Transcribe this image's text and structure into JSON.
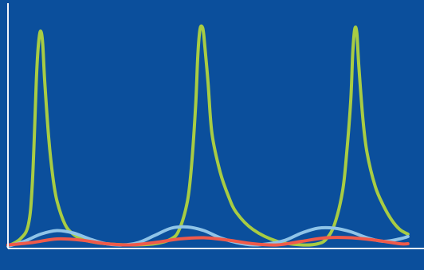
{
  "chart_data": {
    "type": "line",
    "title": "",
    "xlabel": "",
    "ylabel": "",
    "xlim": [
      0,
      100
    ],
    "ylim": [
      0,
      100
    ],
    "grid": false,
    "legend": "none",
    "background_color": "#0b4f9c",
    "axis_color": "#f2f6fb",
    "series": [
      {
        "color": "#a8cc43",
        "x": [
          0,
          3,
          5,
          6,
          7,
          7.5,
          8,
          8.5,
          9,
          10,
          11,
          12,
          14,
          16,
          18,
          20,
          24,
          30,
          36,
          40,
          42,
          44,
          45,
          46,
          46.5,
          47,
          47.5,
          48,
          49,
          50,
          52,
          54,
          56,
          60,
          66,
          72,
          76,
          78,
          80,
          82,
          83,
          84,
          84.5,
          85,
          85.5,
          86,
          87,
          88,
          90,
          92,
          94,
          96,
          98
        ],
        "y": [
          1,
          4,
          10,
          28,
          72,
          86,
          91,
          86,
          70,
          46,
          30,
          20,
          10,
          6,
          4,
          3,
          2,
          1.5,
          2,
          4,
          8,
          20,
          35,
          60,
          80,
          91,
          93,
          89,
          70,
          48,
          32,
          22,
          15,
          8,
          3,
          1.5,
          2,
          4,
          10,
          24,
          40,
          62,
          82,
          92,
          90,
          76,
          54,
          40,
          26,
          18,
          12,
          8,
          6
        ]
      },
      {
        "color": "#8fc4e8",
        "x": [
          0,
          4,
          8,
          12,
          16,
          20,
          24,
          28,
          32,
          36,
          40,
          44,
          48,
          52,
          56,
          60,
          64,
          68,
          72,
          76,
          80,
          84,
          88,
          92,
          96,
          98
        ],
        "y": [
          1,
          3,
          6,
          7.5,
          6.5,
          4,
          2,
          1.5,
          2.5,
          5.5,
          8.5,
          9,
          7.5,
          4.5,
          2.5,
          1.5,
          2,
          3.5,
          6.5,
          8.5,
          8.5,
          7,
          4.5,
          3,
          4,
          5
        ]
      },
      {
        "color": "#f05a4a",
        "x": [
          0,
          6,
          12,
          18,
          24,
          30,
          36,
          42,
          48,
          54,
          60,
          66,
          72,
          78,
          84,
          90,
          96,
          98
        ],
        "y": [
          1.5,
          2.5,
          4,
          3.5,
          2,
          1.5,
          2.5,
          4,
          4.5,
          3.5,
          2,
          1.5,
          3,
          4.5,
          4.5,
          3.5,
          2,
          2
        ]
      }
    ]
  }
}
